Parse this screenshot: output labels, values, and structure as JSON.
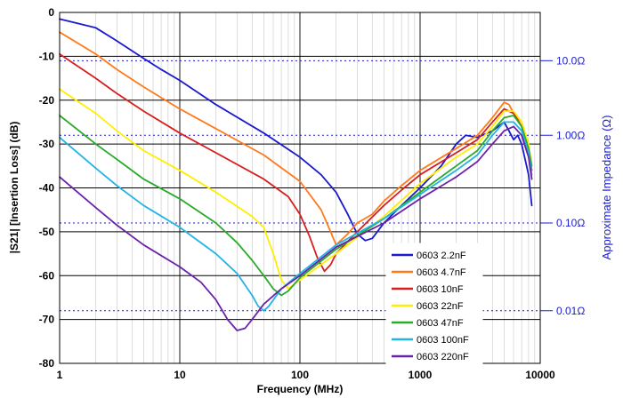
{
  "chart_data": {
    "type": "line",
    "xlabel": "Frequency (MHz)",
    "ylabel": "|S21| [Insertion Loss] (dB)",
    "y2label": "Approximate Impedance (Ω)",
    "x_scale": "log",
    "xlim": [
      1,
      10000
    ],
    "ylim": [
      -80,
      0
    ],
    "grid": true,
    "legend_position": "bottom-right",
    "x_ticks": [
      {
        "value": 1,
        "label": "1"
      },
      {
        "value": 10,
        "label": "10"
      },
      {
        "value": 100,
        "label": "100"
      },
      {
        "value": 1000,
        "label": "1000"
      },
      {
        "value": 10000,
        "label": "10000"
      }
    ],
    "y_ticks": [
      {
        "value": 0,
        "label": "0"
      },
      {
        "value": -10,
        "label": "-10"
      },
      {
        "value": -20,
        "label": "-20"
      },
      {
        "value": -30,
        "label": "-30"
      },
      {
        "value": -40,
        "label": "-40"
      },
      {
        "value": -50,
        "label": "-50"
      },
      {
        "value": -60,
        "label": "-60"
      },
      {
        "value": -70,
        "label": "-70"
      },
      {
        "value": -80,
        "label": "-80"
      }
    ],
    "impedance_refs": [
      {
        "y_db": -11,
        "label": "10.0Ω"
      },
      {
        "y_db": -28,
        "label": "1.00Ω"
      },
      {
        "y_db": -48,
        "label": "0.10Ω"
      },
      {
        "y_db": -68,
        "label": "0.01Ω"
      }
    ],
    "series": [
      {
        "name": "0603 2.2nF",
        "color": "#1a1acc",
        "points": [
          [
            1,
            -1.5
          ],
          [
            2,
            -3.5
          ],
          [
            3,
            -6.5
          ],
          [
            5,
            -10.5
          ],
          [
            7,
            -13
          ],
          [
            10,
            -15.5
          ],
          [
            20,
            -21
          ],
          [
            50,
            -27.5
          ],
          [
            100,
            -33
          ],
          [
            150,
            -37
          ],
          [
            200,
            -41
          ],
          [
            250,
            -46
          ],
          [
            300,
            -50.5
          ],
          [
            350,
            -52
          ],
          [
            400,
            -51.5
          ],
          [
            500,
            -48
          ],
          [
            700,
            -44
          ],
          [
            1000,
            -40
          ],
          [
            1500,
            -35
          ],
          [
            2000,
            -30
          ],
          [
            2400,
            -28
          ],
          [
            3000,
            -28.5
          ],
          [
            4000,
            -27
          ],
          [
            5000,
            -25
          ],
          [
            5500,
            -27
          ],
          [
            6000,
            -29
          ],
          [
            6500,
            -28
          ],
          [
            7000,
            -30
          ],
          [
            8000,
            -37
          ],
          [
            8500,
            -44
          ]
        ]
      },
      {
        "name": "0603 4.7nF",
        "color": "#ff7a1a",
        "points": [
          [
            1,
            -4.5
          ],
          [
            2,
            -9.5
          ],
          [
            3,
            -13
          ],
          [
            5,
            -17
          ],
          [
            10,
            -22
          ],
          [
            20,
            -26.5
          ],
          [
            50,
            -32.5
          ],
          [
            100,
            -38.5
          ],
          [
            150,
            -45
          ],
          [
            180,
            -50
          ],
          [
            200,
            -53
          ],
          [
            250,
            -50.5
          ],
          [
            300,
            -48
          ],
          [
            400,
            -46
          ],
          [
            500,
            -43
          ],
          [
            700,
            -39.5
          ],
          [
            1000,
            -36
          ],
          [
            2000,
            -31
          ],
          [
            3000,
            -28
          ],
          [
            4000,
            -24
          ],
          [
            5000,
            -20.5
          ],
          [
            5500,
            -21
          ],
          [
            6000,
            -23
          ],
          [
            7000,
            -25
          ],
          [
            8000,
            -30
          ],
          [
            8500,
            -38
          ]
        ]
      },
      {
        "name": "0603 10nF",
        "color": "#d62020",
        "points": [
          [
            1,
            -9.5
          ],
          [
            2,
            -15
          ],
          [
            3,
            -18.5
          ],
          [
            5,
            -22.5
          ],
          [
            10,
            -27.5
          ],
          [
            20,
            -32
          ],
          [
            50,
            -38
          ],
          [
            80,
            -42
          ],
          [
            100,
            -46
          ],
          [
            120,
            -51
          ],
          [
            140,
            -56
          ],
          [
            160,
            -59
          ],
          [
            180,
            -57.5
          ],
          [
            200,
            -55
          ],
          [
            300,
            -50
          ],
          [
            500,
            -44
          ],
          [
            700,
            -40.5
          ],
          [
            1000,
            -37
          ],
          [
            2000,
            -32
          ],
          [
            3000,
            -29
          ],
          [
            4000,
            -25
          ],
          [
            5000,
            -22
          ],
          [
            6000,
            -23
          ],
          [
            7000,
            -26
          ],
          [
            8000,
            -32
          ],
          [
            8500,
            -36
          ]
        ]
      },
      {
        "name": "0603 22nF",
        "color": "#ffee00",
        "points": [
          [
            1,
            -17.5
          ],
          [
            2,
            -23
          ],
          [
            3,
            -27
          ],
          [
            5,
            -31.5
          ],
          [
            10,
            -36
          ],
          [
            20,
            -41
          ],
          [
            40,
            -46.5
          ],
          [
            50,
            -49
          ],
          [
            60,
            -55
          ],
          [
            70,
            -61
          ],
          [
            80,
            -63
          ],
          [
            100,
            -61
          ],
          [
            200,
            -55
          ],
          [
            500,
            -46.5
          ],
          [
            1000,
            -39
          ],
          [
            2000,
            -33
          ],
          [
            3000,
            -30
          ],
          [
            4000,
            -26
          ],
          [
            5000,
            -22.5
          ],
          [
            6000,
            -22.5
          ],
          [
            7000,
            -25
          ],
          [
            8000,
            -30
          ],
          [
            8500,
            -35
          ]
        ]
      },
      {
        "name": "0603 47nF",
        "color": "#2aaa2a",
        "points": [
          [
            1,
            -23.5
          ],
          [
            2,
            -30
          ],
          [
            3,
            -33.5
          ],
          [
            5,
            -38
          ],
          [
            10,
            -42.5
          ],
          [
            20,
            -48
          ],
          [
            30,
            -52.5
          ],
          [
            40,
            -56.5
          ],
          [
            50,
            -60
          ],
          [
            60,
            -63
          ],
          [
            70,
            -64.5
          ],
          [
            80,
            -63.5
          ],
          [
            100,
            -60.5
          ],
          [
            200,
            -54
          ],
          [
            500,
            -47
          ],
          [
            1000,
            -41
          ],
          [
            2000,
            -35
          ],
          [
            3000,
            -31.5
          ],
          [
            4000,
            -27
          ],
          [
            5000,
            -24
          ],
          [
            6000,
            -23.5
          ],
          [
            7000,
            -26
          ],
          [
            8000,
            -31
          ],
          [
            8500,
            -35
          ]
        ]
      },
      {
        "name": "0603 100nF",
        "color": "#22b4e6",
        "points": [
          [
            1,
            -28.5
          ],
          [
            2,
            -35.5
          ],
          [
            3,
            -39.5
          ],
          [
            5,
            -44
          ],
          [
            10,
            -49
          ],
          [
            20,
            -55
          ],
          [
            30,
            -59.5
          ],
          [
            40,
            -64.5
          ],
          [
            45,
            -67
          ],
          [
            50,
            -68
          ],
          [
            55,
            -67
          ],
          [
            70,
            -63
          ],
          [
            100,
            -59.5
          ],
          [
            200,
            -53
          ],
          [
            500,
            -47
          ],
          [
            1000,
            -41.5
          ],
          [
            2000,
            -36
          ],
          [
            3000,
            -32.5
          ],
          [
            4000,
            -28
          ],
          [
            5000,
            -25
          ],
          [
            6000,
            -25
          ],
          [
            7000,
            -27
          ],
          [
            8000,
            -32
          ],
          [
            8500,
            -37
          ]
        ]
      },
      {
        "name": "0603 220nF",
        "color": "#6a22a8",
        "points": [
          [
            1,
            -37.5
          ],
          [
            2,
            -44.5
          ],
          [
            3,
            -48.5
          ],
          [
            5,
            -53
          ],
          [
            10,
            -58
          ],
          [
            15,
            -61.5
          ],
          [
            20,
            -65.5
          ],
          [
            25,
            -70
          ],
          [
            30,
            -72.5
          ],
          [
            35,
            -72
          ],
          [
            40,
            -70
          ],
          [
            50,
            -66.5
          ],
          [
            70,
            -63
          ],
          [
            100,
            -60
          ],
          [
            200,
            -53.5
          ],
          [
            500,
            -48
          ],
          [
            1000,
            -42.5
          ],
          [
            2000,
            -37.5
          ],
          [
            3000,
            -34
          ],
          [
            4000,
            -30
          ],
          [
            5000,
            -27
          ],
          [
            6000,
            -26
          ],
          [
            7000,
            -28
          ],
          [
            8000,
            -33
          ],
          [
            8500,
            -38
          ]
        ]
      }
    ]
  }
}
